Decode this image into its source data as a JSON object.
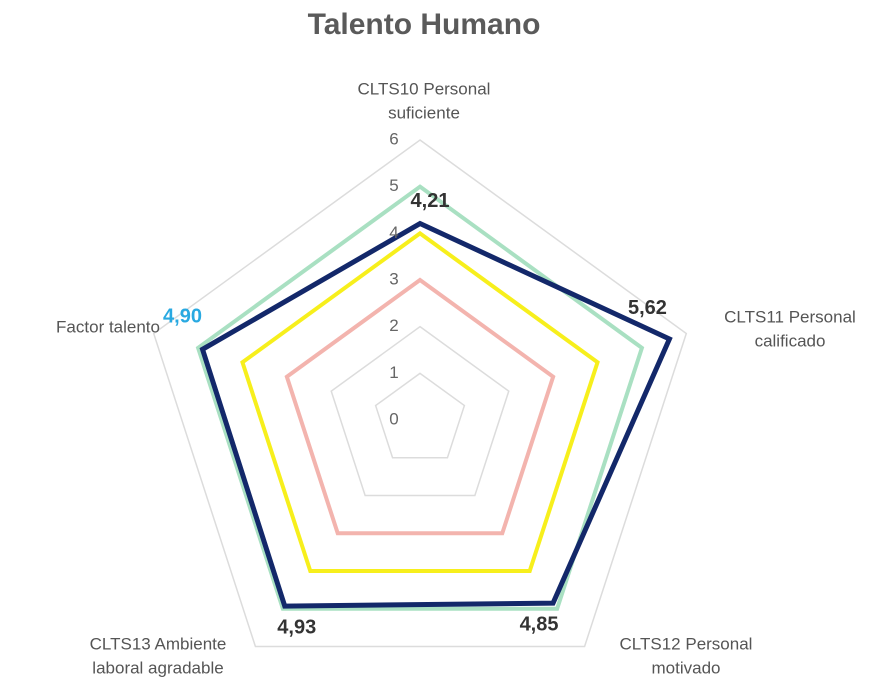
{
  "chart_data": {
    "type": "radar",
    "title": "Talento Humano",
    "categories": [
      [
        "CLTS10 Personal",
        "suficiente"
      ],
      [
        "CLTS11 Personal",
        "calificado"
      ],
      [
        "CLTS12 Personal",
        "motivado"
      ],
      [
        "CLTS13 Ambiente",
        "laboral agradable"
      ],
      [
        "Factor talento"
      ]
    ],
    "ylim": [
      0,
      6
    ],
    "yticks": [
      0,
      1,
      2,
      3,
      4,
      5,
      6
    ],
    "grid": true,
    "series": [
      {
        "color": "#a9e0c2",
        "values": [
          5,
          5,
          5,
          5,
          5
        ]
      },
      {
        "color": "#f7ef1c",
        "values": [
          4,
          4,
          4,
          4,
          4
        ]
      },
      {
        "color": "#f3b4ae",
        "values": [
          3,
          3,
          3,
          3,
          3
        ]
      },
      {
        "color": "#13286a",
        "values": [
          4.21,
          5.62,
          4.85,
          4.93,
          4.9
        ],
        "value_labels": [
          "4,21",
          "5,62",
          "4,85",
          "4,93",
          "4,90"
        ],
        "value_label_colors": [
          "#333333",
          "#333333",
          "#333333",
          "#333333",
          "#29a9e1"
        ]
      }
    ]
  }
}
